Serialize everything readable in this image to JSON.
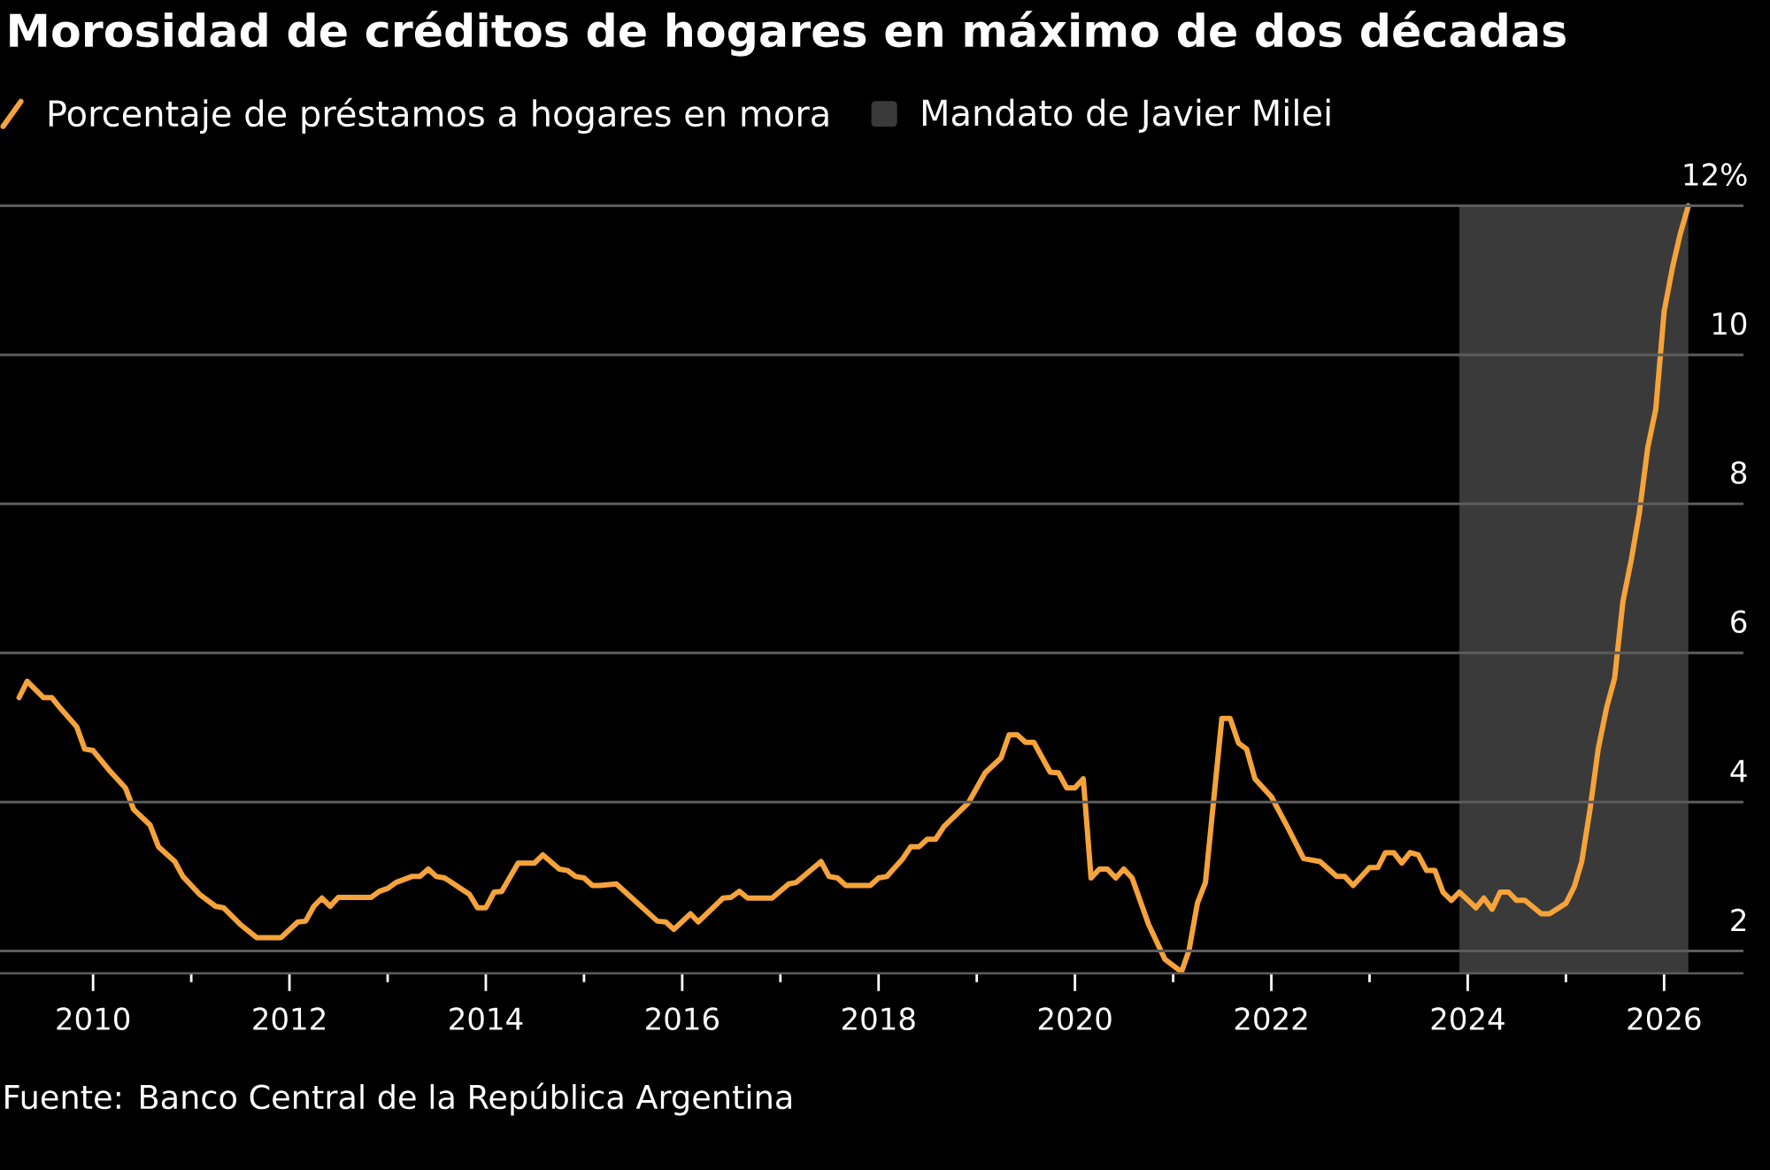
{
  "chart_data": {
    "type": "line",
    "title": "Morosidad de créditos de hogares en máximo de dos décadas",
    "annotations": [
      "Fuente: Banco Central de la República Argentina"
    ],
    "x": [
      "2009-04",
      "2009-05",
      "2009-07",
      "2009-08",
      "2009-09",
      "2009-11",
      "2009-12",
      "2010-01",
      "2010-03",
      "2010-05",
      "2010-06",
      "2010-08",
      "2010-09",
      "2010-11",
      "2010-12",
      "2011-02",
      "2011-04",
      "2011-05",
      "2011-07",
      "2011-09",
      "2011-12",
      "2012-02",
      "2012-03",
      "2012-04",
      "2012-05",
      "2012-06",
      "2012-07",
      "2012-11",
      "2012-12",
      "2013-01",
      "2013-02",
      "2013-04",
      "2013-05",
      "2013-06",
      "2013-07",
      "2013-08",
      "2013-11",
      "2013-12",
      "2014-01",
      "2014-02",
      "2014-03",
      "2014-05",
      "2014-07",
      "2014-08",
      "2014-10",
      "2014-11",
      "2014-12",
      "2015-01",
      "2015-02",
      "2015-03",
      "2015-05",
      "2015-10",
      "2015-11",
      "2015-12",
      "2016-02",
      "2016-03",
      "2016-06",
      "2016-07",
      "2016-08",
      "2016-09",
      "2016-12",
      "2017-02",
      "2017-03",
      "2017-06",
      "2017-07",
      "2017-08",
      "2017-09",
      "2017-12",
      "2018-01",
      "2018-02",
      "2018-04",
      "2018-05",
      "2018-06",
      "2018-07",
      "2018-08",
      "2018-09",
      "2018-12",
      "2019-02",
      "2019-04",
      "2019-05",
      "2019-06",
      "2019-07",
      "2019-08",
      "2019-10",
      "2019-11",
      "2019-12",
      "2020-01",
      "2020-02",
      "2020-03",
      "2020-04",
      "2020-05",
      "2020-06",
      "2020-07",
      "2020-08",
      "2020-10",
      "2020-12",
      "2021-02",
      "2021-03",
      "2021-04",
      "2021-05",
      "2021-07",
      "2021-08",
      "2021-09",
      "2021-10",
      "2021-11",
      "2022-01",
      "2022-03",
      "2022-05",
      "2022-07",
      "2022-09",
      "2022-10",
      "2022-11",
      "2023-01",
      "2023-02",
      "2023-03",
      "2023-04",
      "2023-05",
      "2023-06",
      "2023-07",
      "2023-08",
      "2023-09",
      "2023-10",
      "2023-11",
      "2023-12",
      "2024-02",
      "2024-03",
      "2024-04",
      "2024-05",
      "2024-06",
      "2024-07",
      "2024-08",
      "2024-10",
      "2024-11",
      "2025-01",
      "2025-02",
      "2025-03",
      "2025-04",
      "2025-05",
      "2025-06",
      "2025-07",
      "2025-08",
      "2025-09",
      "2025-10",
      "2025-11",
      "2025-12",
      "2026-01",
      "2026-02",
      "2026-03",
      "2026-04"
    ],
    "series": [
      {
        "name": "Porcentaje de préstamos a hogares en mora",
        "color": "#f5a33a",
        "values": [
          5.4,
          5.62,
          5.4,
          5.4,
          5.26,
          5.01,
          4.71,
          4.69,
          4.43,
          4.19,
          3.9,
          3.69,
          3.4,
          3.2,
          3.0,
          2.76,
          2.6,
          2.58,
          2.36,
          2.18,
          2.18,
          2.39,
          2.4,
          2.6,
          2.71,
          2.6,
          2.72,
          2.72,
          2.8,
          2.84,
          2.92,
          3.0,
          3.0,
          3.1,
          3.0,
          2.98,
          2.76,
          2.58,
          2.58,
          2.79,
          2.8,
          3.18,
          3.18,
          3.29,
          3.1,
          3.08,
          3.0,
          2.98,
          2.88,
          2.88,
          2.9,
          2.4,
          2.39,
          2.29,
          2.5,
          2.39,
          2.71,
          2.72,
          2.8,
          2.71,
          2.71,
          2.9,
          2.92,
          3.2,
          3.0,
          2.98,
          2.88,
          2.88,
          2.98,
          3.0,
          3.24,
          3.4,
          3.4,
          3.5,
          3.5,
          3.67,
          3.99,
          4.39,
          4.59,
          4.9,
          4.9,
          4.8,
          4.8,
          4.4,
          4.39,
          4.19,
          4.19,
          4.31,
          2.98,
          3.1,
          3.1,
          2.98,
          3.1,
          2.98,
          2.36,
          1.89,
          1.72,
          2.01,
          2.64,
          2.92,
          5.12,
          5.12,
          4.79,
          4.71,
          4.31,
          4.07,
          3.67,
          3.24,
          3.2,
          3.0,
          3.0,
          2.88,
          3.12,
          3.12,
          3.32,
          3.32,
          3.18,
          3.32,
          3.29,
          3.08,
          3.08,
          2.79,
          2.68,
          2.79,
          2.58,
          2.71,
          2.56,
          2.79,
          2.79,
          2.68,
          2.68,
          2.5,
          2.5,
          2.64,
          2.86,
          3.2,
          3.91,
          4.71,
          5.26,
          5.66,
          6.69,
          7.25,
          7.88,
          8.75,
          9.27,
          10.58,
          11.17,
          11.61,
          12.0
        ]
      }
    ],
    "xlim": [
      "2009-01-20",
      "2026-10-23"
    ],
    "xticks": [
      "2010",
      {
        "value": "2011",
        "label": null
      },
      "2012",
      {
        "value": "2013",
        "label": null
      },
      "2014",
      {
        "value": "2015",
        "label": null
      },
      "2016",
      {
        "value": "2017",
        "label": null
      },
      "2018",
      {
        "value": "2019",
        "label": null
      },
      "2020",
      {
        "value": "2021",
        "label": null
      },
      "2022",
      {
        "value": "2023",
        "label": null
      },
      "2024",
      {
        "value": "2025",
        "label": null
      },
      "2026"
    ],
    "ylim": [
      1.7,
      12
    ],
    "yticks": [
      2,
      4,
      6,
      8,
      10,
      {
        "value": 12,
        "label": "12%"
      }
    ],
    "grid": "y",
    "legend": "top left",
    "line_style": "solid",
    "bands": [
      {
        "axis": "x",
        "from": "2023-12",
        "to": "2026-04",
        "label": "Mandato de Javier Milei",
        "color": "#3a3a3a"
      }
    ]
  }
}
